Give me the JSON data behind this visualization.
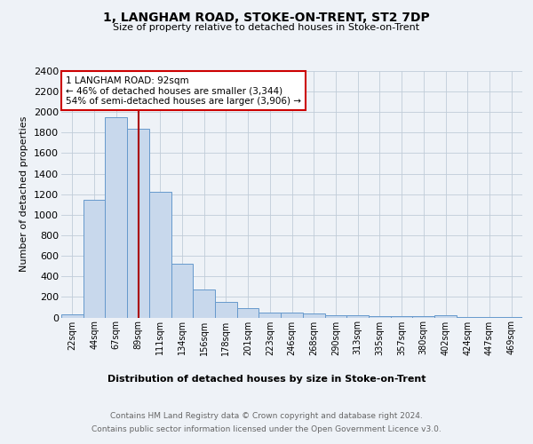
{
  "title": "1, LANGHAM ROAD, STOKE-ON-TRENT, ST2 7DP",
  "subtitle": "Size of property relative to detached houses in Stoke-on-Trent",
  "xlabel": "Distribution of detached houses by size in Stoke-on-Trent",
  "ylabel": "Number of detached properties",
  "categories": [
    "22sqm",
    "44sqm",
    "67sqm",
    "89sqm",
    "111sqm",
    "134sqm",
    "156sqm",
    "178sqm",
    "201sqm",
    "223sqm",
    "246sqm",
    "268sqm",
    "290sqm",
    "313sqm",
    "335sqm",
    "357sqm",
    "380sqm",
    "402sqm",
    "424sqm",
    "447sqm",
    "469sqm"
  ],
  "values": [
    30,
    1150,
    1950,
    1840,
    1220,
    520,
    270,
    155,
    90,
    45,
    45,
    35,
    20,
    20,
    15,
    10,
    10,
    20,
    5,
    5,
    5
  ],
  "bar_color": "#c8d8ec",
  "bar_edge_color": "#6699cc",
  "marker_line_index": 3,
  "marker_line_color": "#aa0000",
  "annotation_title": "1 LANGHAM ROAD: 92sqm",
  "annotation_line1": "← 46% of detached houses are smaller (3,344)",
  "annotation_line2": "54% of semi-detached houses are larger (3,906) →",
  "annotation_box_color": "#ffffff",
  "annotation_box_edge": "#cc0000",
  "ylim": [
    0,
    2400
  ],
  "yticks": [
    0,
    200,
    400,
    600,
    800,
    1000,
    1200,
    1400,
    1600,
    1800,
    2000,
    2200,
    2400
  ],
  "footer_line1": "Contains HM Land Registry data © Crown copyright and database right 2024.",
  "footer_line2": "Contains public sector information licensed under the Open Government Licence v3.0.",
  "background_color": "#eef2f7",
  "plot_bg_color": "#eef2f7",
  "grid_color": "#c0ccd8"
}
